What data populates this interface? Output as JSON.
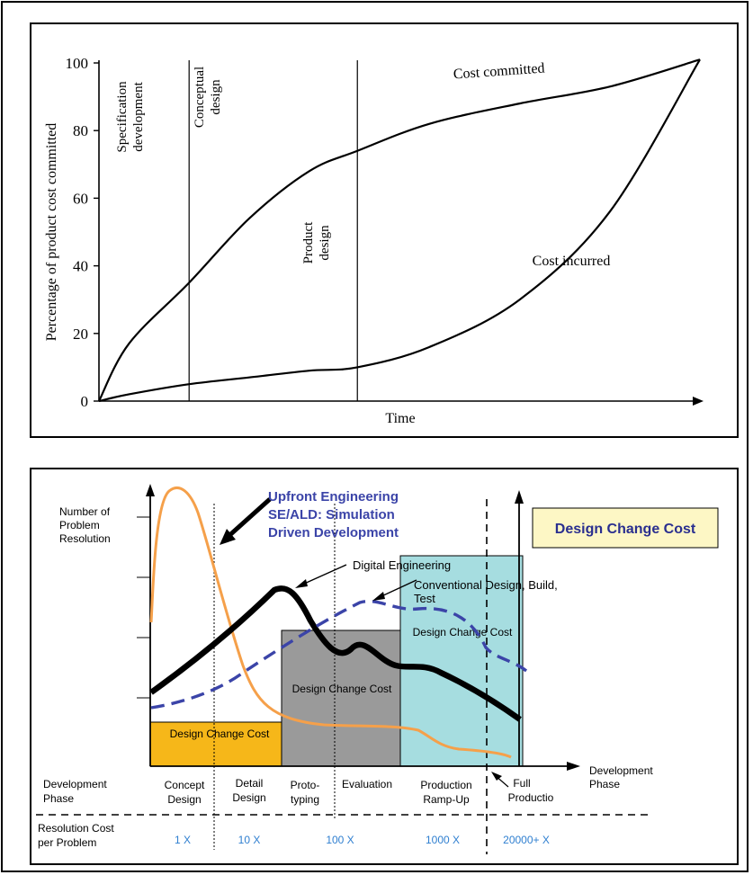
{
  "chart_data": [
    {
      "type": "line",
      "xlabel": "Time",
      "ylabel": "Percentage of product cost committed",
      "ylim": [
        0,
        100
      ],
      "yticks": [
        "0",
        "20",
        "40",
        "60",
        "80",
        "100"
      ],
      "phases": [
        "Specification development",
        "Conceptual design",
        "Product design"
      ],
      "phase_lines": [
        0.15,
        0.43
      ],
      "series": [
        {
          "name": "Cost committed",
          "x": [
            0,
            0.05,
            0.15,
            0.25,
            0.35,
            0.43,
            0.55,
            0.7,
            0.85,
            1.0
          ],
          "values": [
            0,
            17,
            35,
            54,
            68,
            74,
            82,
            88,
            93,
            101
          ]
        },
        {
          "name": "Cost incurred",
          "x": [
            0,
            0.05,
            0.15,
            0.25,
            0.35,
            0.43,
            0.55,
            0.7,
            0.85,
            1.0
          ],
          "values": [
            0,
            2,
            5,
            7,
            9,
            10,
            16,
            30,
            56,
            101
          ]
        }
      ]
    },
    {
      "type": "line",
      "title": "Design Change Cost",
      "ylabel": "Number of Problem Resolution",
      "xlabel": "Development Phase",
      "phases": [
        "Concept Design",
        "Detail Design",
        "Proto-typing",
        "Evaluation",
        "Production Ramp-Up",
        "Full Productio"
      ],
      "row_labels": [
        "Development Phase",
        "Resolution Cost per Problem"
      ],
      "resolution_costs": [
        "1 X",
        "10 X",
        "100 X",
        "1000 X",
        "20000+ X"
      ],
      "cost_boxes": [
        {
          "label": "Design Change Cost",
          "color": "#f6b719"
        },
        {
          "label": "Design Change Cost",
          "color": "#9a9a9a"
        },
        {
          "label": "Design Change Cost",
          "color": "#a6dde0"
        }
      ],
      "series": [
        {
          "name": "Upfront Engineering SE/ALD: Simulation Driven Development",
          "color": "#f5a04a"
        },
        {
          "name": "Digital Engineering",
          "color": "#000000"
        },
        {
          "name": "Conventional Design, Build, Test",
          "color": "#3b44a8"
        }
      ]
    }
  ]
}
